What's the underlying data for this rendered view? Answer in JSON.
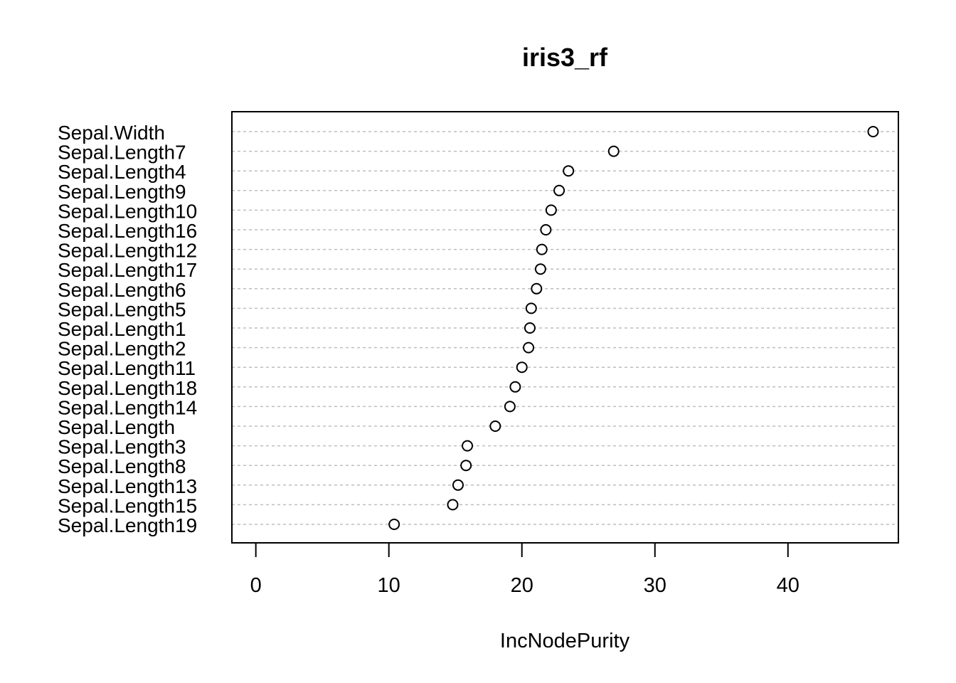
{
  "chart_data": {
    "type": "scatter",
    "title": "iris3_rf",
    "xlabel": "IncNodePurity",
    "ylabel": "",
    "xlim": [
      -1.8,
      48.3
    ],
    "xticks": [
      0,
      10,
      20,
      30,
      40
    ],
    "grid": true,
    "categories": [
      "Sepal.Width",
      "Sepal.Length7",
      "Sepal.Length4",
      "Sepal.Length9",
      "Sepal.Length10",
      "Sepal.Length16",
      "Sepal.Length12",
      "Sepal.Length17",
      "Sepal.Length6",
      "Sepal.Length5",
      "Sepal.Length1",
      "Sepal.Length2",
      "Sepal.Length11",
      "Sepal.Length18",
      "Sepal.Length14",
      "Sepal.Length",
      "Sepal.Length3",
      "Sepal.Length8",
      "Sepal.Length13",
      "Sepal.Length15",
      "Sepal.Length19"
    ],
    "values": [
      46.4,
      26.9,
      23.5,
      22.8,
      22.2,
      21.8,
      21.5,
      21.4,
      21.1,
      20.7,
      20.6,
      20.5,
      20.0,
      19.5,
      19.1,
      18.0,
      15.9,
      15.8,
      15.2,
      14.8,
      10.4
    ]
  }
}
